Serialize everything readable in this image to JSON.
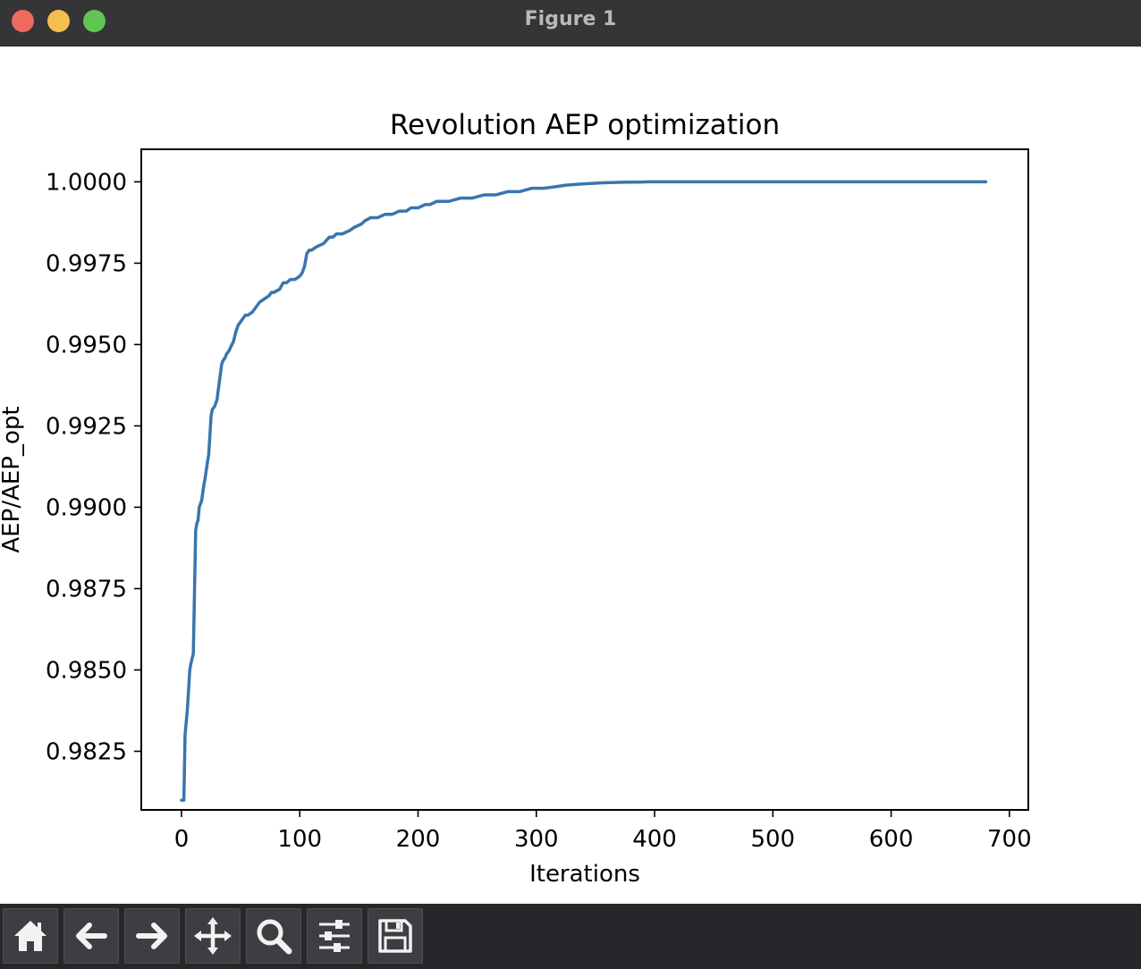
{
  "window": {
    "title": "Figure 1"
  },
  "toolbar": {
    "buttons": [
      {
        "icon": "home-icon"
      },
      {
        "icon": "back-arrow-icon"
      },
      {
        "icon": "forward-arrow-icon"
      },
      {
        "icon": "pan-icon"
      },
      {
        "icon": "zoom-icon"
      },
      {
        "icon": "configure-subplots-icon"
      },
      {
        "icon": "save-icon"
      }
    ]
  },
  "chart_data": {
    "type": "line",
    "title": "Revolution AEP optimization",
    "xlabel": "Iterations",
    "ylabel": "AEP/AEP_opt",
    "xlim": [
      -34,
      716
    ],
    "ylim": [
      0.9807,
      1.001
    ],
    "xticks": [
      0,
      100,
      200,
      300,
      400,
      500,
      600,
      700
    ],
    "xtick_labels": [
      "0",
      "100",
      "200",
      "300",
      "400",
      "500",
      "600",
      "700"
    ],
    "yticks": [
      0.9825,
      0.985,
      0.9875,
      0.99,
      0.9925,
      0.995,
      0.9975,
      1.0
    ],
    "ytick_labels": [
      "0.9825",
      "0.9850",
      "0.9875",
      "0.9900",
      "0.9925",
      "0.9950",
      "0.9975",
      "1.0000"
    ],
    "grid": false,
    "line_color": "#3a75ae",
    "series": [
      {
        "x": [
          0,
          2,
          3,
          5,
          7,
          8,
          10,
          12,
          13,
          14,
          15,
          17,
          19,
          20,
          22,
          23,
          25,
          26,
          28,
          30,
          34,
          35,
          37,
          38,
          40,
          44,
          46,
          48,
          50,
          52,
          54,
          56,
          60,
          62,
          66,
          74,
          76,
          78,
          83,
          86,
          89,
          92,
          96,
          100,
          102,
          104,
          106,
          108,
          110,
          114,
          120,
          125,
          128,
          131,
          133,
          136,
          142,
          146,
          152,
          155,
          160,
          166,
          172,
          178,
          184,
          190,
          194,
          200,
          206,
          210,
          216,
          226,
          236,
          246,
          256,
          266,
          276,
          286,
          296,
          306,
          316,
          326,
          336,
          346,
          356,
          366,
          376,
          386,
          396,
          406,
          426,
          446,
          476,
          520,
          580,
          640,
          680
        ],
        "y": [
          0.981,
          0.981,
          0.983,
          0.9838,
          0.985,
          0.9852,
          0.9855,
          0.9893,
          0.9895,
          0.9896,
          0.99,
          0.9902,
          0.9907,
          0.9909,
          0.9914,
          0.9916,
          0.9928,
          0.993,
          0.9931,
          0.9933,
          0.9944,
          0.9945,
          0.9946,
          0.9947,
          0.9948,
          0.9951,
          0.9954,
          0.9956,
          0.9957,
          0.9958,
          0.9959,
          0.9959,
          0.996,
          0.9961,
          0.9963,
          0.9965,
          0.9966,
          0.9966,
          0.9967,
          0.9969,
          0.9969,
          0.997,
          0.997,
          0.9971,
          0.9972,
          0.9974,
          0.9978,
          0.9979,
          0.9979,
          0.998,
          0.9981,
          0.9983,
          0.9983,
          0.9984,
          0.9984,
          0.9984,
          0.9985,
          0.9986,
          0.9987,
          0.9988,
          0.9989,
          0.9989,
          0.999,
          0.999,
          0.9991,
          0.9991,
          0.9992,
          0.9992,
          0.9993,
          0.9993,
          0.9994,
          0.9994,
          0.9995,
          0.9995,
          0.9996,
          0.9996,
          0.9997,
          0.9997,
          0.9998,
          0.9998,
          0.99985,
          0.9999,
          0.99993,
          0.99995,
          0.99997,
          0.99998,
          0.99999,
          0.99999,
          1.0,
          1.0,
          1.0,
          1.0,
          1.0,
          1.0,
          1.0,
          1.0,
          1.0
        ]
      }
    ]
  }
}
